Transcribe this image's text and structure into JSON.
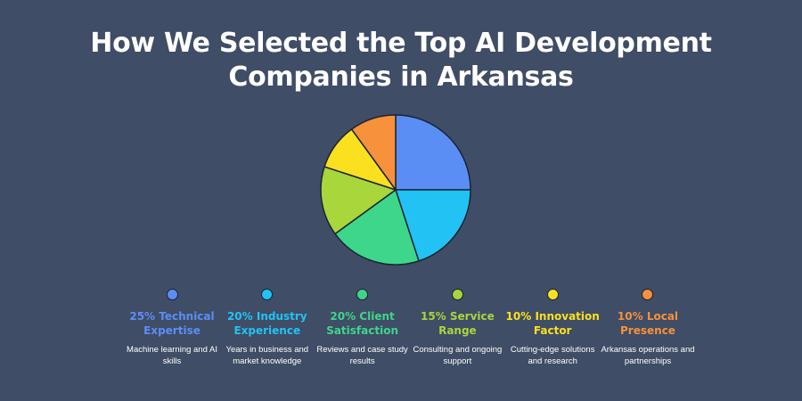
{
  "title": {
    "line1": "How We Selected the Top AI Development",
    "line2": "Companies in Arkansas"
  },
  "chart_data": {
    "type": "pie",
    "categories": [
      "Technical Expertise",
      "Industry Experience",
      "Client Satisfaction",
      "Service Range",
      "Innovation Factor",
      "Local Presence"
    ],
    "values": [
      25,
      20,
      20,
      15,
      10,
      10
    ],
    "colors": [
      "#5b8ef5",
      "#22c2f5",
      "#3ed68b",
      "#a8d63b",
      "#fbe01f",
      "#f7913b"
    ]
  },
  "legend": [
    {
      "label": "25% Technical Expertise",
      "desc": "Machine learning and AI skills",
      "color": "#5b8ef5"
    },
    {
      "label": "20% Industry Experience",
      "desc": "Years in business and market knowledge",
      "color": "#22c2f5"
    },
    {
      "label": "20% Client Satisfaction",
      "desc": "Reviews and case study results",
      "color": "#3ed68b"
    },
    {
      "label": "15% Service Range",
      "desc": "Consulting and ongoing support",
      "color": "#a8d63b"
    },
    {
      "label": "10% Innovation Factor",
      "desc": "Cutting-edge solutions and research",
      "color": "#fbe01f"
    },
    {
      "label": "10% Local Presence",
      "desc": "Arkansas operations and partnerships",
      "color": "#f7913b"
    }
  ]
}
